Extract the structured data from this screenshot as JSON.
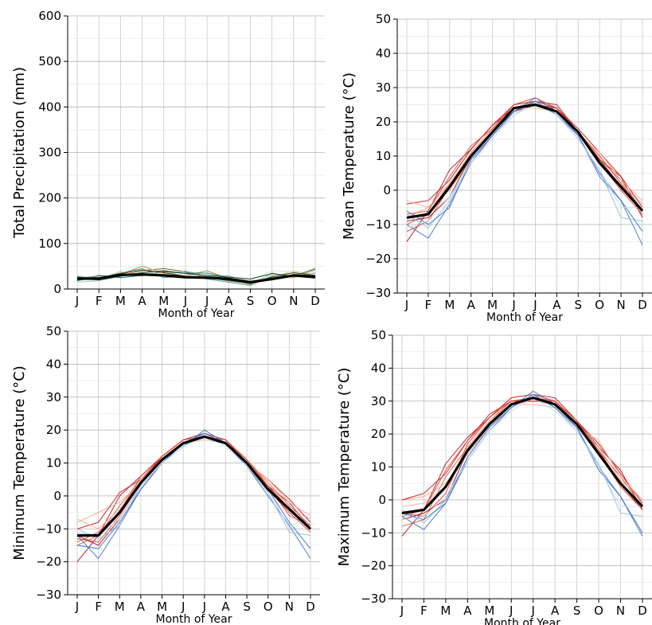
{
  "chart_data": [
    {
      "type": "line",
      "id": "precip",
      "xlabel": "Month of Year",
      "ylabel": "Total Precipitation (mm)",
      "categories": [
        "J",
        "F",
        "M",
        "A",
        "M",
        "J",
        "J",
        "A",
        "S",
        "O",
        "N",
        "D"
      ],
      "ylim": [
        0,
        600
      ],
      "yticks": [
        0,
        100,
        200,
        300,
        400,
        500,
        600
      ],
      "grid": true,
      "ensemble_colors": [
        "#8c510a",
        "#bf812d",
        "#dfc27d",
        "#80cdc1",
        "#35978f",
        "#01665e",
        "#c7eae5",
        "#f6e8c3",
        "#543005",
        "#003c30"
      ],
      "ensemble": [
        [
          22,
          20,
          30,
          40,
          45,
          38,
          25,
          20,
          15,
          22,
          30,
          28
        ],
        [
          25,
          28,
          32,
          50,
          35,
          30,
          40,
          22,
          10,
          35,
          25,
          42
        ],
        [
          20,
          22,
          38,
          28,
          40,
          25,
          30,
          28,
          18,
          25,
          40,
          30
        ],
        [
          15,
          18,
          28,
          35,
          30,
          40,
          28,
          30,
          12,
          30,
          35,
          25
        ],
        [
          28,
          25,
          35,
          45,
          25,
          28,
          22,
          15,
          8,
          28,
          30,
          35
        ],
        [
          18,
          30,
          25,
          30,
          38,
          35,
          35,
          25,
          14,
          20,
          28,
          45
        ],
        [
          30,
          22,
          40,
          55,
          30,
          22,
          28,
          20,
          20,
          40,
          38,
          22
        ],
        [
          24,
          26,
          30,
          38,
          32,
          30,
          32,
          24,
          16,
          32,
          22,
          38
        ],
        [
          20,
          24,
          34,
          42,
          36,
          28,
          26,
          18,
          12,
          26,
          36,
          30
        ],
        [
          26,
          20,
          28,
          36,
          40,
          34,
          30,
          26,
          22,
          34,
          28,
          24
        ]
      ],
      "series": [
        {
          "name": "",
          "color": "#000000",
          "values": [
            23,
            23,
            31,
            32,
            30,
            26,
            25,
            22,
            15,
            22,
            30,
            27
          ]
        }
      ]
    },
    {
      "type": "line",
      "id": "tmean",
      "xlabel": "Month of Year",
      "ylabel": "Mean Temperature (°C)",
      "categories": [
        "J",
        "F",
        "M",
        "A",
        "M",
        "J",
        "J",
        "A",
        "S",
        "O",
        "N",
        "D"
      ],
      "ylim": [
        -30,
        50
      ],
      "yticks": [
        -30,
        -20,
        -10,
        0,
        10,
        20,
        30,
        40,
        50
      ],
      "grid": true,
      "ensemble_colors": [
        "#b2182b",
        "#d6604d",
        "#f4a582",
        "#ef3b2c",
        "#cb181d",
        "#a50f15",
        "#fcae91",
        "#e34a33",
        "#4575b4",
        "#91bfdb",
        "#3b6fd6",
        "#c6dbef"
      ],
      "ensemble": [
        [
          -15,
          -6,
          6,
          12,
          19,
          25,
          26,
          25,
          17,
          9,
          4,
          -8
        ],
        [
          -10,
          -7,
          2,
          10,
          17,
          24,
          26,
          24,
          17,
          9,
          3,
          -6
        ],
        [
          -8,
          -5,
          0,
          9,
          16,
          23,
          25,
          23,
          16,
          10,
          2,
          -4
        ],
        [
          -12,
          -9,
          1,
          11,
          18,
          25,
          27,
          24,
          17,
          8,
          0,
          -7
        ],
        [
          -4,
          -3,
          3,
          12,
          19,
          24,
          25,
          24,
          18,
          11,
          4,
          -5
        ],
        [
          -9,
          -8,
          -2,
          10,
          17,
          23,
          25,
          24,
          17,
          9,
          1,
          -6
        ],
        [
          -3,
          -5,
          2,
          11,
          18,
          24,
          24,
          23,
          16,
          11,
          3,
          -3
        ],
        [
          -7,
          -6,
          4,
          13,
          18,
          25,
          26,
          24,
          17,
          10,
          2,
          -6
        ],
        [
          -10,
          -14,
          -4,
          8,
          16,
          23,
          27,
          23,
          16,
          5,
          -3,
          -16
        ],
        [
          -7,
          -11,
          -3,
          9,
          16,
          22,
          26,
          22,
          15,
          6,
          -8,
          -9
        ],
        [
          -6,
          -10,
          -5,
          9,
          16,
          23,
          26,
          22,
          16,
          4,
          -3,
          -12
        ],
        [
          -11,
          -9,
          -2,
          8,
          15,
          22,
          25,
          22,
          15,
          6,
          -5,
          -5
        ]
      ],
      "series": [
        {
          "name": "",
          "color": "#000000",
          "values": [
            -8,
            -7,
            1,
            10,
            17,
            24,
            25,
            23,
            17,
            8,
            1,
            -6
          ]
        }
      ]
    },
    {
      "type": "line",
      "id": "tmin",
      "xlabel": "Month of Year",
      "ylabel": "Minimum Temperature (°C)",
      "categories": [
        "J",
        "F",
        "M",
        "A",
        "M",
        "J",
        "J",
        "A",
        "S",
        "O",
        "N",
        "D"
      ],
      "ylim": [
        -30,
        50
      ],
      "yticks": [
        -30,
        -20,
        -10,
        0,
        10,
        20,
        30,
        40,
        50
      ],
      "grid": true,
      "ensemble_colors": [
        "#b2182b",
        "#d6604d",
        "#f4a582",
        "#ef3b2c",
        "#cb181d",
        "#a50f15",
        "#fcae91",
        "#e34a33",
        "#4575b4",
        "#91bfdb",
        "#3b6fd6",
        "#c6dbef"
      ],
      "ensemble": [
        [
          -20,
          -12,
          0,
          6,
          12,
          17,
          19,
          17,
          11,
          3,
          -2,
          -10
        ],
        [
          -15,
          -12,
          -3,
          5,
          11,
          16,
          18,
          16,
          11,
          4,
          -3,
          -9
        ],
        [
          -8,
          -5,
          -2,
          4,
          11,
          16,
          18,
          16,
          10,
          4,
          -4,
          -7
        ],
        [
          -13,
          -14,
          -6,
          4,
          12,
          17,
          19,
          16,
          10,
          2,
          -5,
          -11
        ],
        [
          -10,
          -8,
          1,
          5,
          12,
          17,
          18,
          17,
          10,
          5,
          -1,
          -8
        ],
        [
          -12,
          -15,
          -7,
          3,
          10,
          16,
          18,
          16,
          10,
          3,
          -4,
          -10
        ],
        [
          -7,
          -10,
          -4,
          5,
          11,
          16,
          17,
          16,
          10,
          5,
          -2,
          -6
        ],
        [
          -14,
          -11,
          -5,
          6,
          12,
          17,
          19,
          17,
          11,
          3,
          -6,
          -9
        ],
        [
          -12,
          -19,
          -9,
          2,
          10,
          15,
          20,
          16,
          9,
          0,
          -9,
          -19
        ],
        [
          -10,
          -13,
          -9,
          3,
          10,
          15,
          19,
          16,
          9,
          1,
          -11,
          -12
        ],
        [
          -15,
          -16,
          -8,
          2,
          10,
          16,
          19,
          16,
          9,
          2,
          -8,
          -16
        ],
        [
          -11,
          -12,
          -7,
          3,
          10,
          15,
          18,
          15,
          9,
          2,
          -10,
          -5
        ]
      ],
      "series": [
        {
          "name": "",
          "color": "#000000",
          "values": [
            -12,
            -12,
            -5,
            4,
            11,
            16,
            18,
            16,
            10,
            2,
            -4,
            -10
          ]
        }
      ]
    },
    {
      "type": "line",
      "id": "tmax",
      "xlabel": "Month of Year",
      "ylabel": "Maximum Temperature (°C)",
      "categories": [
        "J",
        "F",
        "M",
        "A",
        "M",
        "J",
        "J",
        "A",
        "S",
        "O",
        "N",
        "D"
      ],
      "ylim": [
        -30,
        50
      ],
      "yticks": [
        -30,
        -20,
        -10,
        0,
        10,
        20,
        30,
        40,
        50
      ],
      "grid": true,
      "ensemble_colors": [
        "#b2182b",
        "#d6604d",
        "#f4a582",
        "#ef3b2c",
        "#cb181d",
        "#a50f15",
        "#fcae91",
        "#e34a33",
        "#4575b4",
        "#91bfdb",
        "#3b6fd6",
        "#c6dbef"
      ],
      "ensemble": [
        [
          -11,
          -3,
          11,
          19,
          25,
          31,
          32,
          31,
          24,
          16,
          9,
          -3
        ],
        [
          -8,
          -6,
          7,
          16,
          24,
          30,
          31,
          30,
          23,
          15,
          7,
          -2
        ],
        [
          0,
          1,
          5,
          14,
          22,
          29,
          30,
          29,
          22,
          16,
          6,
          0
        ],
        [
          -4,
          -5,
          2,
          17,
          25,
          31,
          32,
          30,
          24,
          14,
          4,
          -3
        ],
        [
          0,
          2,
          8,
          18,
          26,
          30,
          30,
          30,
          24,
          17,
          8,
          -1
        ],
        [
          -6,
          -4,
          0,
          15,
          23,
          29,
          31,
          29,
          23,
          14,
          5,
          -2
        ],
        [
          -2,
          -1,
          4,
          16,
          24,
          29,
          29,
          28,
          22,
          18,
          7,
          0
        ],
        [
          -5,
          -3,
          9,
          18,
          25,
          30,
          31,
          30,
          24,
          15,
          5,
          -3
        ],
        [
          -5,
          -9,
          -1,
          12,
          21,
          28,
          33,
          29,
          22,
          10,
          1,
          -11
        ],
        [
          -3,
          -7,
          0,
          13,
          22,
          28,
          32,
          28,
          21,
          11,
          -4,
          -5
        ],
        [
          -4,
          -6,
          -1,
          13,
          22,
          28,
          32,
          28,
          22,
          9,
          1,
          -10
        ],
        [
          -6,
          -5,
          1,
          12,
          21,
          27,
          31,
          27,
          21,
          10,
          -2,
          -2
        ]
      ],
      "series": [
        {
          "name": "",
          "color": "#000000",
          "values": [
            -4,
            -3,
            4,
            15,
            23,
            29,
            31,
            29,
            23,
            14,
            5,
            -2
          ]
        }
      ]
    }
  ]
}
